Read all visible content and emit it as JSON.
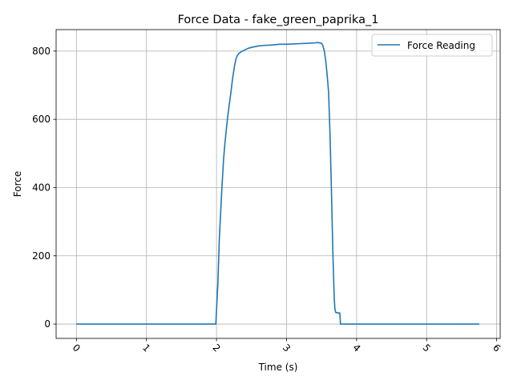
{
  "chart_data": {
    "type": "line",
    "title": "Force Data - fake_green_paprika_1",
    "xlabel": "Time (s)",
    "ylabel": "Force",
    "xlim": [
      -0.29,
      6.05
    ],
    "ylim": [
      -42,
      863
    ],
    "xticks": [
      0,
      1,
      2,
      3,
      4,
      5,
      6
    ],
    "yticks": [
      0,
      200,
      400,
      600,
      800
    ],
    "xtick_rotation_deg": 45,
    "grid": true,
    "legend": {
      "placement": "top-right",
      "entries": [
        "Force Reading"
      ]
    },
    "series": [
      {
        "name": "Force Reading",
        "color": "#1f77b4",
        "x": [
          0,
          0.5,
          1.0,
          1.5,
          1.99,
          2.0,
          2.02,
          2.04,
          2.06,
          2.08,
          2.1,
          2.12,
          2.15,
          2.18,
          2.2,
          2.23,
          2.26,
          2.28,
          2.3,
          2.32,
          2.35,
          2.4,
          2.45,
          2.5,
          2.6,
          2.7,
          2.8,
          2.9,
          3.0,
          3.1,
          3.2,
          3.3,
          3.4,
          3.45,
          3.5,
          3.52,
          3.54,
          3.56,
          3.58,
          3.6,
          3.62,
          3.64,
          3.66,
          3.67,
          3.68,
          3.69,
          3.7,
          3.71,
          3.72,
          3.74,
          3.76,
          3.77,
          3.8,
          4.0,
          4.5,
          5.0,
          5.5,
          5.75
        ],
        "y": [
          0,
          0,
          0,
          0,
          0,
          40,
          120,
          250,
          330,
          410,
          480,
          530,
          590,
          640,
          670,
          720,
          760,
          778,
          788,
          793,
          798,
          803,
          808,
          811,
          815,
          817,
          818,
          820,
          820,
          821,
          822,
          823,
          824,
          825,
          823,
          815,
          800,
          770,
          730,
          680,
          560,
          400,
          220,
          150,
          80,
          45,
          35,
          33,
          34,
          32,
          33,
          0,
          0,
          0,
          0,
          0,
          0,
          0
        ]
      }
    ]
  }
}
